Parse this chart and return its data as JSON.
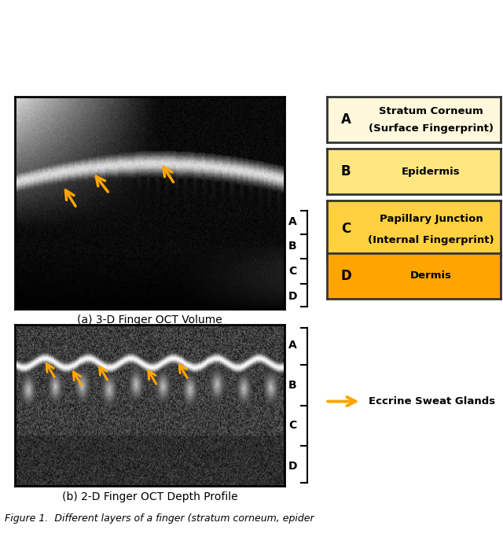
{
  "title_a": "(a) 3-D Finger OCT Volume",
  "title_b": "(b) 2-D Finger OCT Depth Profile",
  "caption": "Figure 1.  Different layers of a finger (stratum corneum, epider",
  "layers": [
    "A",
    "B",
    "C",
    "D"
  ],
  "layer_labels": [
    "Stratum Corneum\n(Surface Fingerprint)",
    "Epidermis",
    "Papillary Junction\n(Internal Fingerprint)",
    "Dermis"
  ],
  "layer_colors": [
    "#FFF8DC",
    "#FFE680",
    "#FFD040",
    "#FFA500"
  ],
  "layer_border": "#333333",
  "arrow_color": "#FFA500",
  "eccrine_label": "Eccrine Sweat Glands",
  "bracket_color": "#000000",
  "background": "#ffffff"
}
